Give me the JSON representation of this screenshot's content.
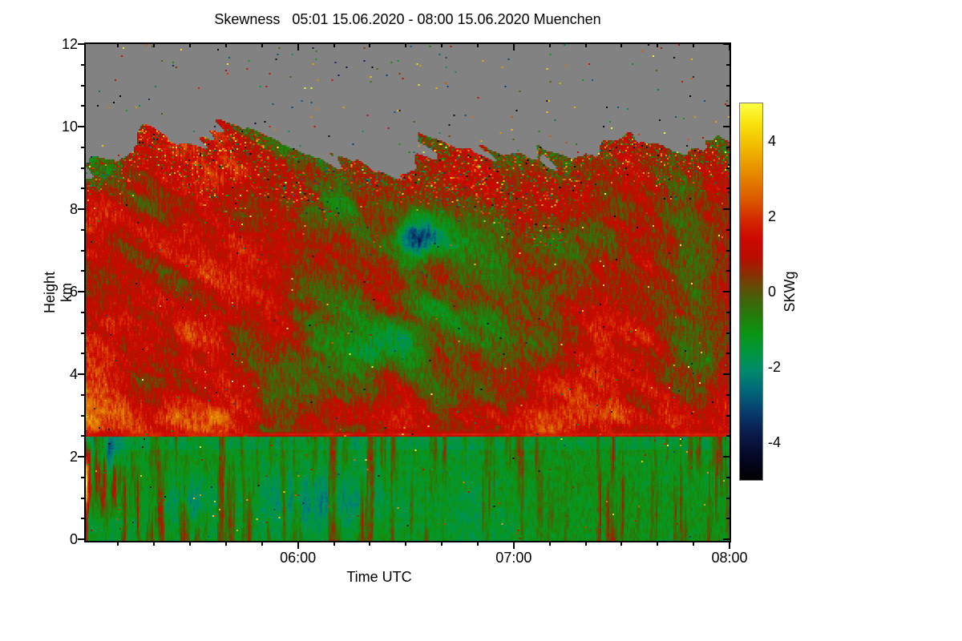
{
  "chart_data": {
    "type": "heatmap",
    "title": "Skewness   05:01 15.06.2020 - 08:00 15.06.2020 Muenchen",
    "xlabel": "Time UTC",
    "ylabel": "Height km",
    "x_start": "05:01",
    "x_end": "08:00",
    "x_range_minutes": [
      0,
      179
    ],
    "x_major_ticks": [
      {
        "minute": 59,
        "label": "06:00"
      },
      {
        "minute": 119,
        "label": "07:00"
      },
      {
        "minute": 179,
        "label": "08:00"
      }
    ],
    "x_minor_step_minutes": 10,
    "x_minor_start_minute": 9,
    "y_range_km": [
      0,
      12
    ],
    "y_major_ticks": [
      0,
      2,
      4,
      6,
      8,
      10,
      12
    ],
    "y_minor_step_km": 0.5,
    "grid": false,
    "colorbar": {
      "label": "SKWg",
      "range": [
        -5,
        5
      ],
      "labeled_ticks": [
        4,
        2,
        0,
        -2,
        -4
      ],
      "minor_ticks": [
        -4,
        -3,
        -2,
        -1,
        0,
        1,
        2,
        3,
        4
      ]
    },
    "no_data_color": "#828282",
    "colormap_stops": [
      [
        -5.0,
        0,
        0,
        0
      ],
      [
        -4.4,
        5,
        7,
        38
      ],
      [
        -3.8,
        10,
        26,
        74
      ],
      [
        -3.2,
        8,
        60,
        110
      ],
      [
        -2.6,
        0,
        105,
        122
      ],
      [
        -2.1,
        0,
        138,
        108
      ],
      [
        -1.6,
        0,
        150,
        62
      ],
      [
        -1.1,
        12,
        148,
        18
      ],
      [
        -0.6,
        38,
        122,
        10
      ],
      [
        -0.2,
        68,
        98,
        8
      ],
      [
        0.1,
        98,
        78,
        6
      ],
      [
        0.5,
        142,
        44,
        2
      ],
      [
        0.9,
        185,
        14,
        0
      ],
      [
        1.4,
        205,
        8,
        0
      ],
      [
        1.9,
        211,
        40,
        0
      ],
      [
        2.4,
        218,
        85,
        0
      ],
      [
        3.1,
        230,
        135,
        0
      ],
      [
        3.9,
        242,
        190,
        0
      ],
      [
        4.5,
        250,
        228,
        15
      ],
      [
        5.0,
        255,
        255,
        70
      ]
    ],
    "features": {
      "cloud_top": {
        "base_km": 9.35,
        "wave_amp_km": 2.3,
        "ripple_amp_km": 0.8,
        "finger_amp_km": 2.4,
        "min_data_free_km": 10.85,
        "never_gray_below_km": 7.9
      },
      "cloud_speckle": {
        "depth_km": 1.5,
        "density": 0.3,
        "outlier_density": 0.05
      },
      "red_line": {
        "height_km": 2.565,
        "sigma_km": 0.035,
        "value": 1.75
      },
      "red_band": {
        "center_km": 2.95,
        "sigma_km": 0.28,
        "amp": 1.15
      },
      "boundary_layer": {
        "top_km": 2.5,
        "background_value": -1.25
      },
      "hot_plumes": {
        "t_end_min": 18,
        "h_min_km": 0.55,
        "h_max_km": 2.42,
        "strength": 14
      },
      "left_red_boost": {
        "t_end_min": 55,
        "amp": 0.55
      },
      "outlier_density": 0.0045,
      "gray_speckle_density": 0.007,
      "blobs": [
        {
          "t": 92,
          "h": 7.35,
          "st": 4.0,
          "sh": 0.33,
          "amp": -3.4
        },
        {
          "t": 96,
          "h": 7.0,
          "st": 7.0,
          "sh": 0.7,
          "amp": -1.1
        },
        {
          "t": 99,
          "h": 5.35,
          "st": 6.0,
          "sh": 0.5,
          "amp": -1.3
        },
        {
          "t": 79,
          "h": 4.55,
          "st": 9.0,
          "sh": 0.5,
          "amp": -1.2
        },
        {
          "t": 65,
          "h": 0.95,
          "st": 14.0,
          "sh": 0.45,
          "amp": -0.9
        },
        {
          "t": 28,
          "h": 1.0,
          "st": 5.0,
          "sh": 0.35,
          "amp": -0.8
        },
        {
          "t": 6,
          "h": 2.15,
          "st": 3.0,
          "sh": 0.28,
          "amp": -1.7
        }
      ]
    }
  }
}
